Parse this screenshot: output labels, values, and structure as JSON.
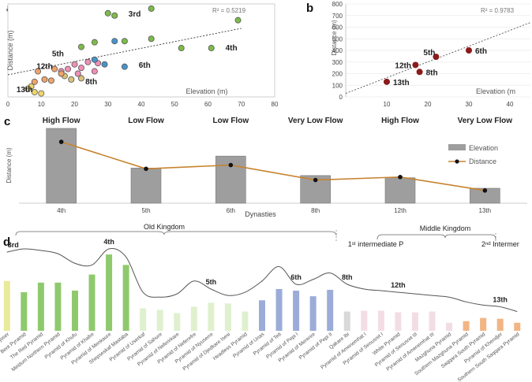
{
  "panels": {
    "a": "a",
    "b": "b",
    "c": "c",
    "d": "d"
  },
  "chart_data": [
    {
      "id": "a",
      "type": "scatter",
      "xlabel": "Elevation (m)",
      "ylabel": "Distance (m)",
      "xlim": [
        0,
        80
      ],
      "xticks": [
        0,
        10,
        20,
        30,
        40,
        50,
        60,
        70,
        80
      ],
      "ylim": [
        0,
        80
      ],
      "r2": "R² = 0.5219",
      "trend": [
        [
          0,
          19
        ],
        [
          70,
          59
        ]
      ],
      "groups": [
        {
          "name": "3rd",
          "color": "#7dbb4a",
          "points": [
            [
              30,
              72
            ],
            [
              32,
              70
            ],
            [
              43,
              76
            ],
            [
              69,
              66
            ],
            [
              43,
              50
            ],
            [
              35,
              48
            ],
            [
              52,
              42
            ],
            [
              61,
              42
            ]
          ]
        },
        {
          "name": "4th",
          "color": "#7dbb4a",
          "points": [
            [
              26,
              47
            ],
            [
              22,
              43
            ]
          ]
        },
        {
          "name": "5th",
          "color": "#f08fb6",
          "points": [
            [
              20,
              28
            ],
            [
              24,
              30
            ],
            [
              27,
              29
            ],
            [
              22,
              25
            ],
            [
              18,
              24
            ],
            [
              26,
              22
            ],
            [
              21,
              20
            ],
            [
              16,
              22
            ]
          ]
        },
        {
          "name": "6th",
          "color": "#4a93c8",
          "points": [
            [
              26,
              32
            ],
            [
              29,
              28
            ],
            [
              35,
              26
            ],
            [
              32,
              48
            ]
          ]
        },
        {
          "name": "8th",
          "color": "#d9c27a",
          "points": [
            [
              22,
              16
            ],
            [
              19,
              15
            ],
            [
              17,
              18
            ]
          ]
        },
        {
          "name": "12th",
          "color": "#efa36c",
          "points": [
            [
              9,
              22
            ],
            [
              14,
              24
            ],
            [
              16,
              20
            ],
            [
              13,
              14
            ],
            [
              11,
              15
            ],
            [
              8,
              13
            ]
          ]
        },
        {
          "name": "13th",
          "color": "#efd46a",
          "points": [
            [
              7,
              9
            ],
            [
              6,
              7
            ],
            [
              8,
              4
            ],
            [
              10,
              3
            ]
          ]
        }
      ],
      "labels": [
        {
          "text": "3rd",
          "x": 38,
          "y": 69
        },
        {
          "text": "4th",
          "x": 67,
          "y": 40
        },
        {
          "text": "5th",
          "x": 15,
          "y": 35
        },
        {
          "text": "6th",
          "x": 41,
          "y": 25
        },
        {
          "text": "12th",
          "x": 11,
          "y": 24
        },
        {
          "text": "8th",
          "x": 25,
          "y": 11
        },
        {
          "text": "13th",
          "x": 5,
          "y": 4
        }
      ]
    },
    {
      "id": "b",
      "type": "scatter",
      "xlabel": "Elevation (m",
      "ylabel": "Distance (m)",
      "xlim": [
        0,
        45
      ],
      "xticks": [
        10,
        20,
        30,
        40
      ],
      "ylim": [
        0,
        800
      ],
      "yticks": [
        0,
        100,
        200,
        300,
        400,
        500,
        600,
        700,
        800
      ],
      "r2": "R² = 0.9783",
      "trend": [
        [
          0,
          30
        ],
        [
          45,
          640
        ]
      ],
      "color": "#8b1a1a",
      "points": [
        {
          "label": "6th",
          "x": 30,
          "y": 400
        },
        {
          "label": "5th",
          "x": 22,
          "y": 345
        },
        {
          "label": "12th",
          "x": 17,
          "y": 275
        },
        {
          "label": "8th",
          "x": 18,
          "y": 215
        },
        {
          "label": "13th",
          "x": 10,
          "y": 130
        }
      ]
    },
    {
      "id": "c",
      "type": "bar",
      "title_top": [
        "High Flow",
        "Low Flow",
        "Low Flow",
        "Very Low Flow",
        "High Flow",
        "Very Low Flow"
      ],
      "categories": [
        "4th",
        "5th",
        "6th",
        "8th",
        "12th",
        "13th"
      ],
      "xlabel": "Dynasties",
      "ylabel": "Distance (m)",
      "ylim": [
        0,
        100
      ],
      "series": [
        {
          "name": "Elevation",
          "type": "bar",
          "color": "#9e9e9e",
          "values": [
            100,
            47,
            63,
            37,
            34,
            20
          ]
        },
        {
          "name": "Distance",
          "type": "line",
          "color": "#c8832f",
          "values": [
            82,
            46,
            51,
            31,
            35,
            17
          ]
        }
      ],
      "periods": [
        {
          "label": "Old Kingdom"
        },
        {
          "label": "1ˢᵗ intermediate P"
        },
        {
          "label": "Middle Kingdom"
        },
        {
          "label": "2ⁿᵈ Intermer"
        }
      ]
    },
    {
      "id": "d",
      "type": "bar",
      "categories": [
        "Pyramid of Djoser",
        "Bent Pyramid",
        "The Red Pyramid",
        "Meidum Northern Pyramid",
        "Pyramid of Khufu",
        "Pyramid of Khafre",
        "Pyramid of Menkaure",
        "Shepseskaf Mastaba",
        "Pyramid of Userkaf",
        "Pyramid of Sahure",
        "Pyramid of Neferirkare",
        "Pyramid of Neferefre",
        "Pyramid of Nyuserre",
        "Pyramid of Djedkare Isesi",
        "Headless Pyramid",
        "Pyramid of Unas",
        "Pyramid of Teti",
        "Pyramid of Pepi I",
        "Pyramid of Merenre",
        "Pyramid of Pepi II",
        "Qakare Ibi",
        "Pyramid of Amenemhat I",
        "Pyramid of Senusret I",
        "White Pyramid",
        "Pyramid of Senusret III",
        "Pyramid of Amenemhat III",
        "Mazghuna Pyramid",
        "Southern Mazghuna Pyramid",
        "Saqqara South Pyramid",
        "Pyramid of Khendjer",
        "Southern South Saqqara Pyramid"
      ],
      "dynasty_labels": [
        {
          "text": "3rd",
          "index": 0
        },
        {
          "text": "4th",
          "index": 6
        },
        {
          "text": "5th",
          "index": 12
        },
        {
          "text": "6th",
          "index": 17
        },
        {
          "text": "8th",
          "index": 20
        },
        {
          "text": "12th",
          "index": 23
        },
        {
          "text": "13th",
          "index": 29
        }
      ],
      "ylim": [
        0,
        100
      ],
      "bar_values": [
        62,
        48,
        60,
        60,
        50,
        70,
        95,
        82,
        28,
        26,
        22,
        30,
        35,
        34,
        24,
        38,
        52,
        50,
        43,
        51,
        24,
        25,
        25,
        23,
        23,
        24,
        10,
        12,
        16,
        15,
        10
      ],
      "bar_colors": [
        "#e9ea9a",
        "#8fc96e",
        "#8fc96e",
        "#8fc96e",
        "#8fc96e",
        "#8fc96e",
        "#8fc96e",
        "#8fc96e",
        "#dff0cf",
        "#dff0cf",
        "#dff0cf",
        "#dff0cf",
        "#dff0cf",
        "#dff0cf",
        "#dff0cf",
        "#9cacd8",
        "#9cacd8",
        "#9cacd8",
        "#9cacd8",
        "#9cacd8",
        "#d9d9d9",
        "#f3dde4",
        "#f3dde4",
        "#f3dde4",
        "#f3dde4",
        "#f3dde4",
        "#f3dde4",
        "#f2b583",
        "#f2b583",
        "#f2b583",
        "#f2b583"
      ],
      "line_values": [
        96,
        100,
        98,
        94,
        82,
        80,
        100,
        90,
        46,
        40,
        44,
        60,
        50,
        42,
        46,
        60,
        78,
        56,
        62,
        70,
        56,
        50,
        48,
        46,
        44,
        42,
        40,
        34,
        30,
        28,
        22
      ]
    }
  ]
}
